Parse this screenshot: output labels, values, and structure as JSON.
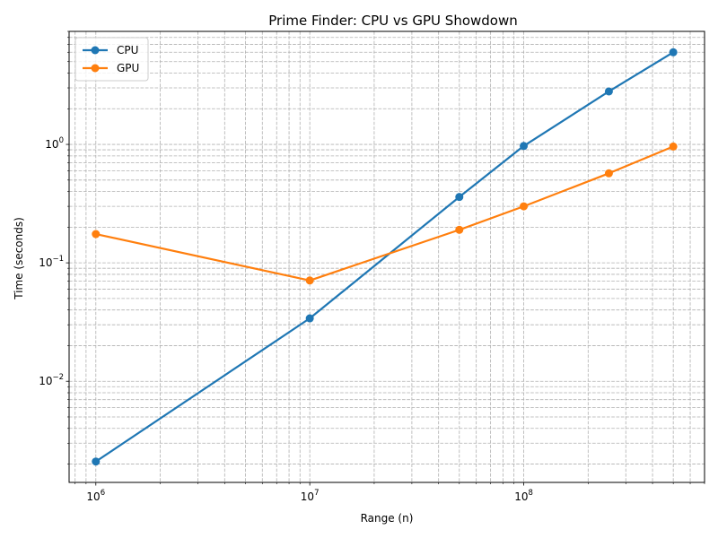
{
  "chart_data": {
    "type": "line",
    "title": "Prime Finder: CPU vs GPU Showdown",
    "xlabel": "Range (n)",
    "ylabel": "Time (seconds)",
    "xscale": "log",
    "yscale": "log",
    "xlim": [
      750000,
      700000000
    ],
    "ylim": [
      0.0014,
      9.0
    ],
    "grid": true,
    "grid_style": "dashed",
    "legend_position": "top-left",
    "x_ticks": [
      {
        "value": 1000000,
        "base": "10",
        "exp": "6"
      },
      {
        "value": 10000000,
        "base": "10",
        "exp": "7"
      },
      {
        "value": 100000000,
        "base": "10",
        "exp": "8"
      }
    ],
    "y_ticks": [
      {
        "value": 0.01,
        "base": "10",
        "exp": "−2"
      },
      {
        "value": 0.1,
        "base": "10",
        "exp": "−1"
      },
      {
        "value": 1,
        "base": "10",
        "exp": "0"
      }
    ],
    "x": [
      1000000,
      10000000,
      50000000,
      100000000,
      250000000,
      500000000
    ],
    "series": [
      {
        "name": "CPU",
        "color": "#1f77b4",
        "values": [
          0.0021,
          0.034,
          0.36,
          0.97,
          2.8,
          6.0
        ]
      },
      {
        "name": "GPU",
        "color": "#ff7f0e",
        "values": [
          0.175,
          0.071,
          0.19,
          0.3,
          0.57,
          0.96
        ]
      }
    ]
  }
}
